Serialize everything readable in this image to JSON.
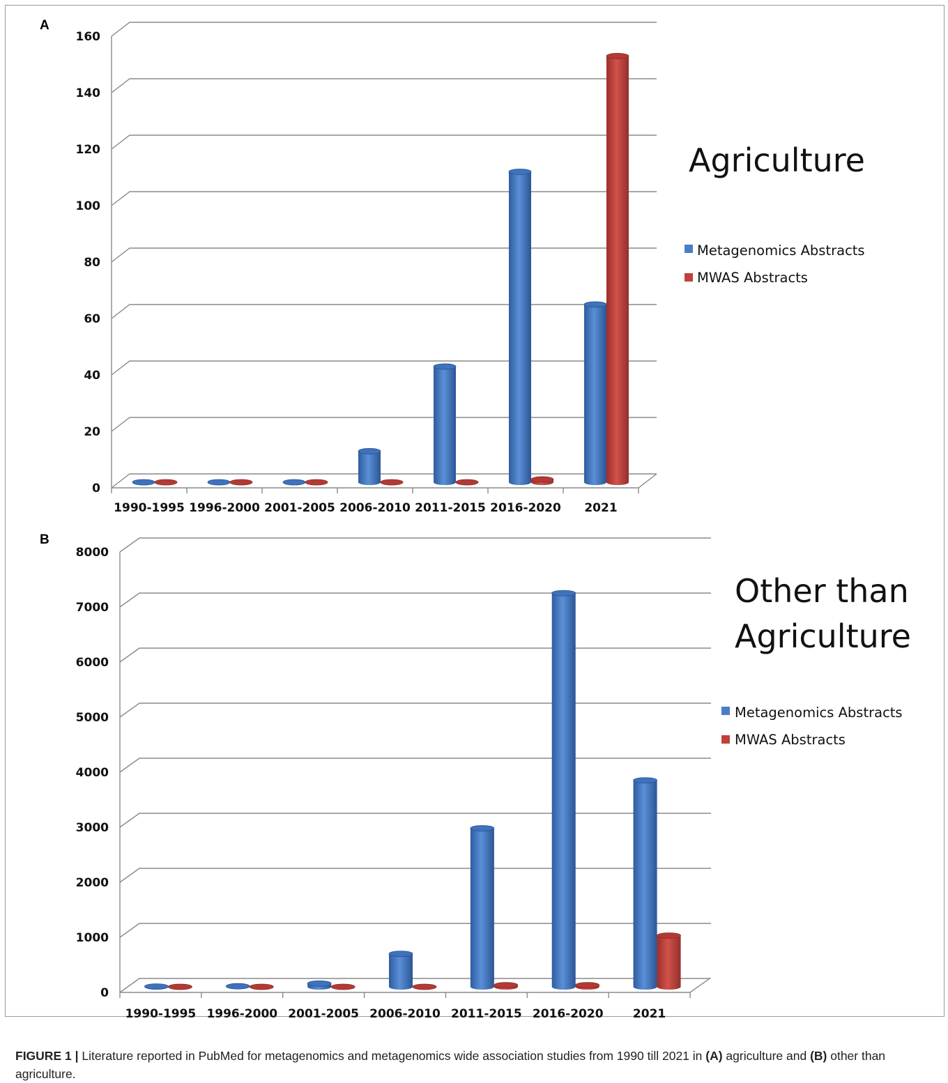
{
  "chart_data": [
    {
      "type": "bar",
      "panel": "A",
      "title": "Agriculture",
      "categories": [
        "1990-1995",
        "1996-2000",
        "2001-2005",
        "2006-2010",
        "2011-2015",
        "2016-2020",
        "2021"
      ],
      "series": [
        {
          "name": "Metagenomics Abstracts",
          "values": [
            0,
            0,
            0,
            11,
            41,
            110,
            63
          ],
          "color": "#4a7ec7"
        },
        {
          "name": "MWAS Abstracts",
          "values": [
            0,
            0,
            0,
            0,
            0,
            1,
            151
          ],
          "color": "#c0413b"
        }
      ],
      "yticks": [
        0,
        20,
        40,
        60,
        80,
        100,
        120,
        140,
        160
      ],
      "ylim": [
        0,
        160
      ],
      "legend_position": "right",
      "grid": true
    },
    {
      "type": "bar",
      "panel": "B",
      "title": "Other than Agriculture",
      "title_lines": [
        "Other than",
        "Agriculture"
      ],
      "categories": [
        "1990-1995",
        "1996-2000",
        "2001-2005",
        "2006-2010",
        "2011-2015",
        "2016-2020",
        "2021"
      ],
      "series": [
        {
          "name": "Metagenomics Abstracts",
          "values": [
            5,
            10,
            60,
            600,
            2880,
            7150,
            3750
          ],
          "color": "#4a7ec7"
        },
        {
          "name": "MWAS Abstracts",
          "values": [
            0,
            0,
            0,
            0,
            30,
            30,
            930
          ],
          "color": "#c0413b"
        }
      ],
      "yticks": [
        0,
        1000,
        2000,
        3000,
        4000,
        5000,
        6000,
        7000,
        8000
      ],
      "ylim": [
        0,
        8000
      ],
      "legend_position": "right",
      "grid": true
    }
  ],
  "caption": {
    "label": "FIGURE 1 |",
    "text_1": " Literature reported in PubMed for metagenomics and metagenomics wide association studies from 1990 till 2021 in ",
    "ref_a": "(A)",
    "text_2": " agriculture and ",
    "ref_b": "(B)",
    "text_3": " other than agriculture."
  }
}
